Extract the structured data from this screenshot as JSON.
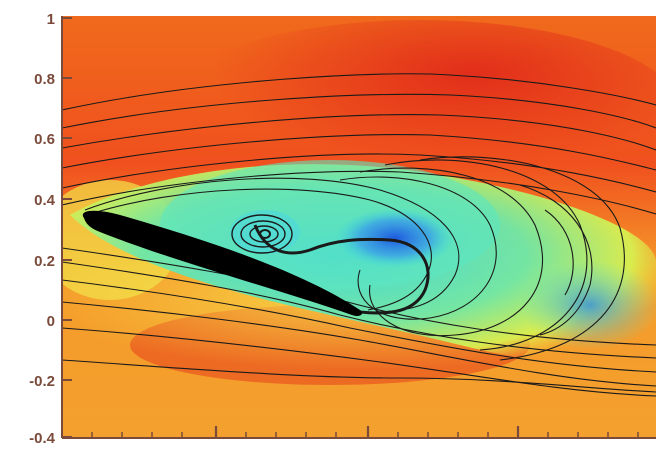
{
  "figure": {
    "type": "flow-field",
    "y_axis": {
      "tick_labels": [
        "1",
        "0.8",
        "0.6",
        "0.4",
        "0.2",
        "0",
        "-0.2",
        "-0.4"
      ],
      "range": [
        -0.4,
        1.0
      ]
    },
    "x_axis": {
      "tick_labels": [],
      "major_tick_count": 4
    },
    "colormap": {
      "high": "#e8341a",
      "mid_high": "#f08a20",
      "mid": "#f5d23a",
      "low_mid": "#7fe6a0",
      "low": "#4ee0d8",
      "min": "#1e5ae0"
    },
    "body_color": "#000000",
    "streamline_color": "#1a1a1a"
  }
}
